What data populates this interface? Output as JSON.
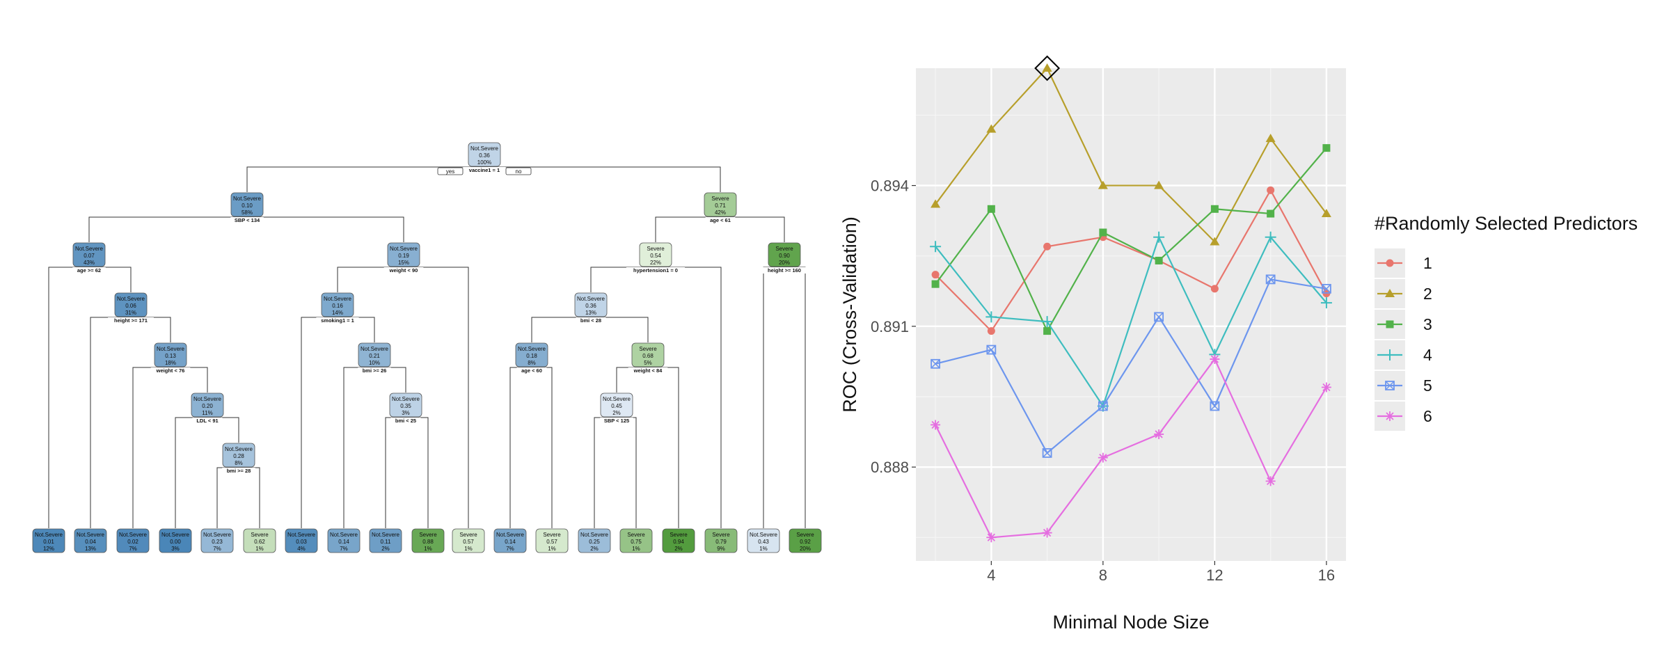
{
  "chart_data": [
    {
      "type": "tree",
      "nodes": [
        {
          "id": "n1",
          "label": "Not.Severe",
          "prob": "0.36",
          "pct": "100%",
          "split": "vaccine1 = 1",
          "yes": "yes",
          "no": "no"
        },
        {
          "id": "n2",
          "parent": "n1",
          "label": "Not.Severe",
          "prob": "0.10",
          "pct": "58%",
          "split": "SBP < 134"
        },
        {
          "id": "n3",
          "parent": "n1",
          "label": "Severe",
          "prob": "0.71",
          "pct": "42%",
          "split": "age < 61"
        },
        {
          "id": "n4",
          "parent": "n2",
          "label": "Not.Severe",
          "prob": "0.07",
          "pct": "43%",
          "split": "age >= 62"
        },
        {
          "id": "n5",
          "parent": "n2",
          "label": "Not.Severe",
          "prob": "0.19",
          "pct": "15%",
          "split": "weight < 90"
        },
        {
          "id": "n6",
          "parent": "n3",
          "label": "Severe",
          "prob": "0.54",
          "pct": "22%",
          "split": "hypertension1 = 0"
        },
        {
          "id": "n7",
          "parent": "n3",
          "label": "Severe",
          "prob": "0.90",
          "pct": "20%",
          "split": "height >= 160"
        },
        {
          "id": "n8",
          "parent": "n4",
          "label": "Not.Severe",
          "prob": "0.06",
          "pct": "31%",
          "split": "height >= 171"
        },
        {
          "id": "n9",
          "parent": "n8",
          "label": "Not.Severe",
          "prob": "0.13",
          "pct": "18%",
          "split": "weight < 76"
        },
        {
          "id": "n10",
          "parent": "n9",
          "label": "Not.Severe",
          "prob": "0.20",
          "pct": "11%",
          "split": "LDL < 91"
        },
        {
          "id": "n11",
          "parent": "n10",
          "label": "Not.Severe",
          "prob": "0.28",
          "pct": "8%",
          "split": "bmi >= 28"
        },
        {
          "id": "n12",
          "parent": "n5",
          "label": "Not.Severe",
          "prob": "0.16",
          "pct": "14%",
          "split": "smoking1 = 1"
        },
        {
          "id": "n13",
          "parent": "n12",
          "label": "Not.Severe",
          "prob": "0.21",
          "pct": "10%",
          "split": "bmi >= 26"
        },
        {
          "id": "n14",
          "parent": "n13",
          "label": "Not.Severe",
          "prob": "0.35",
          "pct": "3%",
          "split": "bmi < 25"
        },
        {
          "id": "n15",
          "parent": "n6",
          "label": "Not.Severe",
          "prob": "0.36",
          "pct": "13%",
          "split": "bmi < 28"
        },
        {
          "id": "n16",
          "parent": "n15",
          "label": "Not.Severe",
          "prob": "0.18",
          "pct": "8%",
          "split": "age < 60"
        },
        {
          "id": "n17",
          "parent": "n15",
          "label": "Severe",
          "prob": "0.68",
          "pct": "5%",
          "split": "weight < 84"
        },
        {
          "id": "n18",
          "parent": "n17",
          "label": "Not.Severe",
          "prob": "0.45",
          "pct": "2%",
          "split": "SBP < 125"
        }
      ],
      "leaves": [
        {
          "parent": "n4",
          "label": "Not.Severe",
          "prob": "0.01",
          "pct": "12%"
        },
        {
          "parent": "n8",
          "label": "Not.Severe",
          "prob": "0.04",
          "pct": "13%"
        },
        {
          "parent": "n9",
          "label": "Not.Severe",
          "prob": "0.02",
          "pct": "7%"
        },
        {
          "parent": "n10",
          "label": "Not.Severe",
          "prob": "0.00",
          "pct": "3%"
        },
        {
          "parent": "n11",
          "label": "Not.Severe",
          "prob": "0.23",
          "pct": "7%"
        },
        {
          "parent": "n11",
          "label": "Severe",
          "prob": "0.62",
          "pct": "1%"
        },
        {
          "parent": "n12",
          "label": "Not.Severe",
          "prob": "0.03",
          "pct": "4%"
        },
        {
          "parent": "n13",
          "label": "Not.Severe",
          "prob": "0.14",
          "pct": "7%"
        },
        {
          "parent": "n14",
          "label": "Not.Severe",
          "prob": "0.11",
          "pct": "2%"
        },
        {
          "parent": "n14",
          "label": "Severe",
          "prob": "0.88",
          "pct": "1%"
        },
        {
          "parent": "n5",
          "label": "Severe",
          "prob": "0.57",
          "pct": "1%"
        },
        {
          "parent": "n16",
          "label": "Not.Severe",
          "prob": "0.14",
          "pct": "7%"
        },
        {
          "parent": "n16",
          "label": "Severe",
          "prob": "0.57",
          "pct": "1%"
        },
        {
          "parent": "n18",
          "label": "Not.Severe",
          "prob": "0.25",
          "pct": "2%"
        },
        {
          "parent": "n18",
          "label": "Severe",
          "prob": "0.75",
          "pct": "1%"
        },
        {
          "parent": "n17",
          "label": "Severe",
          "prob": "0.94",
          "pct": "2%"
        },
        {
          "parent": "n6",
          "label": "Severe",
          "prob": "0.79",
          "pct": "9%"
        },
        {
          "parent": "n7",
          "label": "Not.Severe",
          "prob": "0.43",
          "pct": "1%"
        },
        {
          "parent": "n7",
          "label": "Severe",
          "prob": "0.92",
          "pct": "20%"
        }
      ],
      "colors": {
        "not_severe": "#4a86b8",
        "severe": "#4f9a3a",
        "neutral": "#eef3f9"
      }
    },
    {
      "type": "line",
      "xlabel": "Minimal Node Size",
      "ylabel": "ROC (Cross-Validation)",
      "legend_title": "#Randomly Selected Predictors",
      "legend_position": "right",
      "grid": true,
      "xlim": [
        1.3,
        16.7
      ],
      "ylim": [
        0.886,
        0.8965
      ],
      "xticks": [
        4,
        8,
        12,
        16
      ],
      "yticks": [
        0.888,
        0.891,
        0.894
      ],
      "ytick_labels": [
        "0.888",
        "0.891",
        "0.894"
      ],
      "x": [
        2,
        4,
        6,
        8,
        10,
        12,
        14,
        16
      ],
      "series": [
        {
          "name": "1",
          "color": "#e8766d",
          "marker": "circle",
          "values": [
            0.8921,
            0.8909,
            0.8927,
            0.8929,
            0.8924,
            0.8918,
            0.8939,
            0.8917
          ]
        },
        {
          "name": "2",
          "color": "#b79f2b",
          "marker": "triangle",
          "values": [
            0.8936,
            0.8952,
            0.8965,
            0.894,
            0.894,
            0.8928,
            0.895,
            0.8934
          ]
        },
        {
          "name": "3",
          "color": "#52b24a",
          "marker": "square",
          "values": [
            0.8919,
            0.8935,
            0.8909,
            0.893,
            0.8924,
            0.8935,
            0.8934,
            0.8948
          ]
        },
        {
          "name": "4",
          "color": "#3ebdbf",
          "marker": "plus",
          "values": [
            0.8927,
            0.8912,
            0.8911,
            0.8893,
            0.8929,
            0.8904,
            0.8929,
            0.8915
          ]
        },
        {
          "name": "5",
          "color": "#6d96ee",
          "marker": "boxx",
          "values": [
            0.8902,
            0.8905,
            0.8883,
            0.8893,
            0.8912,
            0.8893,
            0.892,
            0.8918
          ]
        },
        {
          "name": "6",
          "color": "#e56ee0",
          "marker": "star",
          "values": [
            0.8889,
            0.8865,
            0.8866,
            0.8882,
            0.8887,
            0.8903,
            0.8877,
            0.8897
          ]
        }
      ],
      "best": {
        "x": 6,
        "y": 0.8965
      }
    }
  ]
}
